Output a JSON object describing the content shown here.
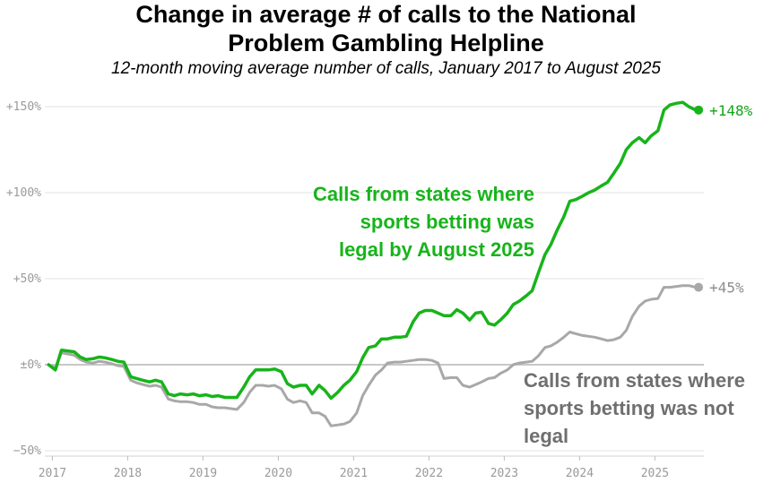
{
  "chart_data": {
    "type": "line",
    "title_line1": "Change in average # of calls to the National",
    "title_line2": "Problem Gambling Helpline",
    "subtitle": "12-month moving average number of calls, January 2017 to August 2025",
    "ylim": [
      -50,
      150
    ],
    "xlim": [
      2016.9,
      2025.65
    ],
    "y_ticks": [
      {
        "value": 150,
        "label": "+150%"
      },
      {
        "value": 100,
        "label": "+100%"
      },
      {
        "value": 50,
        "label": "+50%"
      },
      {
        "value": 0,
        "label": "±0%"
      },
      {
        "value": -50,
        "label": "−50%"
      }
    ],
    "x_ticks": [
      {
        "value": 2017,
        "label": "2017"
      },
      {
        "value": 2018,
        "label": "2018"
      },
      {
        "value": 2019,
        "label": "2019"
      },
      {
        "value": 2020,
        "label": "2020"
      },
      {
        "value": 2021,
        "label": "2021"
      },
      {
        "value": 2022,
        "label": "2022"
      },
      {
        "value": 2023,
        "label": "2023"
      },
      {
        "value": 2024,
        "label": "2024"
      },
      {
        "value": 2025,
        "label": "2025"
      }
    ],
    "series": [
      {
        "name": "legal",
        "color": "#17b41a",
        "end_label": "+148%",
        "annotation": [
          "Calls from states where",
          "sports betting was",
          "legal by August 2025"
        ],
        "x": [
          2016.95,
          2017.04,
          2017.12,
          2017.29,
          2017.37,
          2017.45,
          2017.54,
          2017.62,
          2017.7,
          2017.79,
          2017.87,
          2017.95,
          2018.04,
          2018.12,
          2018.2,
          2018.29,
          2018.37,
          2018.45,
          2018.54,
          2018.62,
          2018.7,
          2018.79,
          2018.87,
          2018.95,
          2019.04,
          2019.12,
          2019.2,
          2019.29,
          2019.37,
          2019.45,
          2019.54,
          2019.62,
          2019.7,
          2019.79,
          2019.87,
          2019.95,
          2020.04,
          2020.12,
          2020.2,
          2020.29,
          2020.37,
          2020.45,
          2020.54,
          2020.62,
          2020.7,
          2020.79,
          2020.87,
          2020.95,
          2021.04,
          2021.12,
          2021.2,
          2021.29,
          2021.37,
          2021.45,
          2021.54,
          2021.62,
          2021.7,
          2021.79,
          2021.87,
          2021.95,
          2022.04,
          2022.12,
          2022.2,
          2022.29,
          2022.37,
          2022.45,
          2022.54,
          2022.62,
          2022.7,
          2022.79,
          2022.87,
          2022.95,
          2023.04,
          2023.12,
          2023.2,
          2023.29,
          2023.37,
          2023.45,
          2023.54,
          2023.62,
          2023.7,
          2023.79,
          2023.87,
          2023.95,
          2024.04,
          2024.12,
          2024.2,
          2024.29,
          2024.37,
          2024.45,
          2024.54,
          2024.62,
          2024.7,
          2024.79,
          2024.87,
          2024.95,
          2025.04,
          2025.12,
          2025.2,
          2025.29,
          2025.37,
          2025.45,
          2025.54,
          2025.58
        ],
        "values": [
          0,
          -3,
          8.5,
          7.5,
          4.5,
          3,
          3.5,
          4.5,
          4,
          3,
          2,
          1.5,
          -7,
          -8,
          -9,
          -10,
          -9,
          -10,
          -17,
          -18,
          -17,
          -17.5,
          -17,
          -18,
          -17.5,
          -18.5,
          -18,
          -19,
          -19,
          -19,
          -13,
          -7,
          -3,
          -3,
          -3,
          -2.5,
          -4,
          -11,
          -13,
          -12,
          -12,
          -17,
          -12,
          -15,
          -19.5,
          -16,
          -12,
          -9,
          -4,
          4,
          10,
          11,
          15,
          15,
          16,
          16,
          16.5,
          25,
          30,
          31.5,
          31.5,
          30,
          28.5,
          28.5,
          32,
          30,
          26,
          30,
          30.5,
          24,
          23,
          26,
          30,
          35,
          37,
          40,
          43,
          53,
          64,
          70,
          78,
          86,
          95,
          96,
          98,
          100,
          101.5,
          104,
          106,
          111,
          117,
          125,
          129,
          132,
          129,
          133,
          136,
          148,
          151,
          152,
          152.5,
          150,
          148,
          148
        ]
      },
      {
        "name": "not legal",
        "color": "#a8a8a8",
        "end_label": "+45%",
        "annotation": [
          "Calls from states where",
          "sports betting was not",
          "legal"
        ],
        "x": [
          2016.95,
          2017.04,
          2017.12,
          2017.29,
          2017.37,
          2017.45,
          2017.54,
          2017.62,
          2017.7,
          2017.79,
          2017.87,
          2017.95,
          2018.04,
          2018.12,
          2018.2,
          2018.29,
          2018.37,
          2018.45,
          2018.54,
          2018.62,
          2018.7,
          2018.79,
          2018.87,
          2018.95,
          2019.04,
          2019.12,
          2019.2,
          2019.29,
          2019.37,
          2019.45,
          2019.54,
          2019.62,
          2019.7,
          2019.79,
          2019.87,
          2019.95,
          2020.04,
          2020.12,
          2020.2,
          2020.29,
          2020.37,
          2020.45,
          2020.54,
          2020.62,
          2020.7,
          2020.79,
          2020.87,
          2020.95,
          2021.04,
          2021.12,
          2021.2,
          2021.29,
          2021.37,
          2021.45,
          2021.54,
          2021.62,
          2021.7,
          2021.79,
          2021.87,
          2021.95,
          2022.04,
          2022.12,
          2022.2,
          2022.29,
          2022.37,
          2022.45,
          2022.54,
          2022.62,
          2022.7,
          2022.79,
          2022.87,
          2022.95,
          2023.04,
          2023.12,
          2023.2,
          2023.29,
          2023.37,
          2023.45,
          2023.54,
          2023.62,
          2023.7,
          2023.79,
          2023.87,
          2023.95,
          2024.04,
          2024.12,
          2024.2,
          2024.29,
          2024.37,
          2024.45,
          2024.54,
          2024.62,
          2024.7,
          2024.79,
          2024.87,
          2024.95,
          2025.04,
          2025.12,
          2025.2,
          2025.29,
          2025.37,
          2025.45,
          2025.54,
          2025.58
        ],
        "values": [
          0,
          -2,
          7,
          5.5,
          3,
          1.5,
          1,
          2,
          1.5,
          0.5,
          -0.5,
          -1,
          -9,
          -10.5,
          -11.5,
          -12.5,
          -12,
          -13,
          -20,
          -21,
          -21.5,
          -21.5,
          -22,
          -23,
          -23,
          -24.5,
          -25,
          -25,
          -25.5,
          -26,
          -22,
          -16,
          -12,
          -12,
          -12.5,
          -12,
          -14,
          -20,
          -22,
          -21,
          -22,
          -28,
          -28,
          -30,
          -35.5,
          -35,
          -34.5,
          -33,
          -28,
          -18,
          -12,
          -6,
          -3,
          1,
          1.5,
          1.5,
          2,
          2.5,
          3,
          3,
          2.5,
          1,
          -8,
          -7.5,
          -7.5,
          -12,
          -13,
          -11.5,
          -10,
          -8,
          -7.5,
          -5,
          -3,
          0,
          1,
          1.5,
          2,
          5,
          10,
          11,
          13,
          16,
          19,
          18,
          17,
          16.5,
          16,
          15,
          14,
          14.5,
          16,
          20,
          28,
          34,
          37,
          38,
          38.5,
          45,
          45,
          45.5,
          46,
          46,
          45,
          45
        ]
      }
    ]
  }
}
